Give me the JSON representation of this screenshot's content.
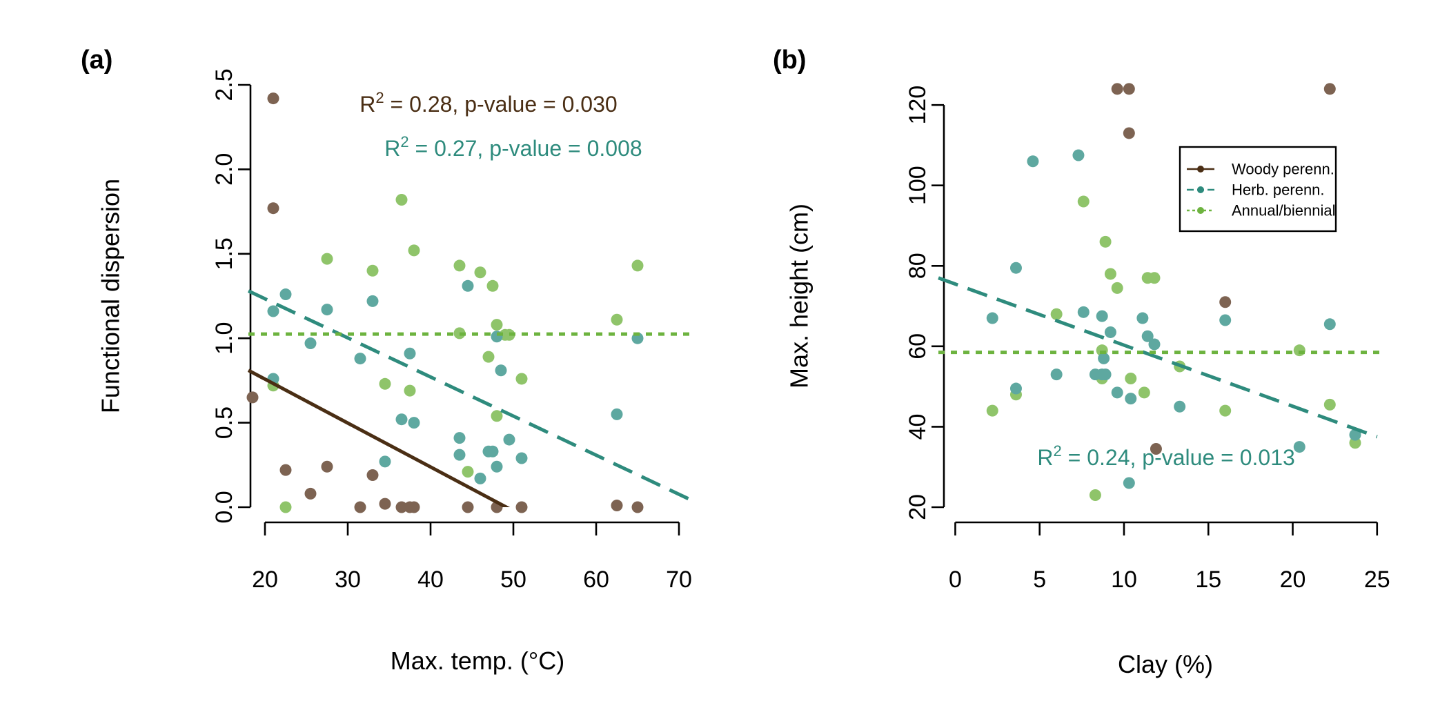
{
  "colors": {
    "woody": "#4a2e14",
    "woody_point": "#7d6352",
    "herb": "#2e8b7d",
    "herb_point": "#5ea8a0",
    "annual": "#6db33f",
    "annual_point": "#8fc46a",
    "axis": "#000000"
  },
  "chart_data": [
    {
      "type": "scatter",
      "panel_label": "(a)",
      "xlabel": "Max. temp. (°C)",
      "ylabel": "Functional dispersion",
      "xlim": [
        18,
        72
      ],
      "ylim": [
        0,
        2.5
      ],
      "x_ticks": [
        20,
        30,
        40,
        50,
        60,
        70
      ],
      "y_ticks": [
        0.0,
        0.5,
        1.0,
        1.5,
        2.0,
        2.5
      ],
      "x_tick_labels": [
        "20",
        "30",
        "40",
        "50",
        "60",
        "70"
      ],
      "y_tick_labels": [
        "0.0",
        "0.5",
        "1.0",
        "1.5",
        "2.0",
        "2.5"
      ],
      "annotations": [
        {
          "text": "R² = 0.28, p-value = 0.030",
          "series": "woody",
          "x": 47,
          "y": 2.34
        },
        {
          "text": "R² = 0.27, p-value = 0.008",
          "series": "herb",
          "x": 50,
          "y": 2.08
        }
      ],
      "series": [
        {
          "key": "woody",
          "points": [
            [
              18.5,
              0.65
            ],
            [
              21,
              2.42
            ],
            [
              21,
              1.77
            ],
            [
              22.5,
              0.22
            ],
            [
              25.5,
              0.08
            ],
            [
              27.5,
              0.24
            ],
            [
              31.5,
              0
            ],
            [
              33,
              0.19
            ],
            [
              34.5,
              0.02
            ],
            [
              36.5,
              0
            ],
            [
              37.5,
              0
            ],
            [
              38,
              0
            ],
            [
              44.5,
              0
            ],
            [
              48,
              0
            ],
            [
              51,
              0
            ],
            [
              62.5,
              0.01
            ],
            [
              65,
              0
            ]
          ],
          "line": {
            "x": [
              18,
              53
            ],
            "y": [
              0.81,
              -0.1
            ]
          }
        },
        {
          "key": "herb",
          "points": [
            [
              21,
              1.16
            ],
            [
              21,
              0.76
            ],
            [
              22.5,
              1.26
            ],
            [
              25.5,
              0.97
            ],
            [
              27.5,
              1.17
            ],
            [
              31.5,
              0.88
            ],
            [
              33,
              1.22
            ],
            [
              34.5,
              0.27
            ],
            [
              36.5,
              0.52
            ],
            [
              37.5,
              0.91
            ],
            [
              38,
              0.5
            ],
            [
              43.5,
              0.41
            ],
            [
              43.5,
              0.31
            ],
            [
              44.5,
              1.31
            ],
            [
              46,
              0.17
            ],
            [
              47,
              0.33
            ],
            [
              47.5,
              0.33
            ],
            [
              48,
              0.24
            ],
            [
              48,
              1.01
            ],
            [
              48.5,
              0.81
            ],
            [
              49.5,
              0.4
            ],
            [
              51,
              0.29
            ],
            [
              62.5,
              0.55
            ],
            [
              65,
              1.0
            ]
          ],
          "line": {
            "x": [
              18,
              72
            ],
            "y": [
              1.28,
              0.03
            ]
          }
        },
        {
          "key": "annual",
          "points": [
            [
              21,
              0.72
            ],
            [
              22.5,
              0
            ],
            [
              27.5,
              1.47
            ],
            [
              33,
              1.4
            ],
            [
              34.5,
              0.73
            ],
            [
              36.5,
              1.82
            ],
            [
              37.5,
              0.69
            ],
            [
              38,
              1.52
            ],
            [
              43.5,
              1.43
            ],
            [
              43.5,
              1.03
            ],
            [
              44.5,
              0.21
            ],
            [
              46,
              1.39
            ],
            [
              47,
              0.89
            ],
            [
              47.5,
              1.31
            ],
            [
              48,
              1.08
            ],
            [
              48,
              0.54
            ],
            [
              49,
              1.02
            ],
            [
              49.5,
              1.02
            ],
            [
              51,
              0.76
            ],
            [
              62.5,
              1.11
            ],
            [
              65,
              1.43
            ]
          ],
          "line": {
            "x": [
              18,
              72
            ],
            "y": [
              1.025,
              1.025
            ]
          }
        }
      ]
    },
    {
      "type": "scatter",
      "panel_label": "(b)",
      "xlabel": "Clay (%)",
      "ylabel": "Max. height (cm)",
      "xlim": [
        -1,
        25.5
      ],
      "ylim": [
        20,
        125
      ],
      "x_ticks": [
        0,
        5,
        10,
        15,
        20,
        25
      ],
      "y_ticks": [
        20,
        40,
        60,
        80,
        100,
        120
      ],
      "x_tick_labels": [
        "0",
        "5",
        "10",
        "15",
        "20",
        "25"
      ],
      "y_tick_labels": [
        "20",
        "40",
        "60",
        "80",
        "100",
        "120"
      ],
      "annotations": [
        {
          "text": "R² = 0.24, p-value = 0.013",
          "series": "herb",
          "x": 12.5,
          "y": 30.5
        }
      ],
      "legend": {
        "position": "top-right",
        "entries": [
          {
            "series": "woody",
            "label": "Woody perenn."
          },
          {
            "series": "herb",
            "label": "Herb. perenn."
          },
          {
            "series": "annual",
            "label": "Annual/biennial"
          }
        ]
      },
      "series": [
        {
          "key": "woody",
          "points": [
            [
              9.6,
              124
            ],
            [
              10.3,
              124
            ],
            [
              10.3,
              113
            ],
            [
              11.9,
              34.5
            ],
            [
              16,
              71
            ],
            [
              22.2,
              124
            ]
          ],
          "line": null
        },
        {
          "key": "herb",
          "points": [
            [
              2.2,
              67
            ],
            [
              3.6,
              79.5
            ],
            [
              3.6,
              49.5
            ],
            [
              4.6,
              106
            ],
            [
              6,
              53
            ],
            [
              7.3,
              107.5
            ],
            [
              7.6,
              68.5
            ],
            [
              8.3,
              53
            ],
            [
              8.7,
              53
            ],
            [
              8.7,
              67.5
            ],
            [
              8.9,
              53
            ],
            [
              8.8,
              57
            ],
            [
              9.2,
              63.5
            ],
            [
              9.6,
              48.5
            ],
            [
              10.4,
              47
            ],
            [
              11.1,
              67
            ],
            [
              11.4,
              62.5
            ],
            [
              11.8,
              60.5
            ],
            [
              13.3,
              45
            ],
            [
              16,
              66.5
            ],
            [
              20.4,
              35
            ],
            [
              22.2,
              65.5
            ],
            [
              23.7,
              38
            ],
            [
              10.3,
              26
            ]
          ],
          "line": {
            "x": [
              -1,
              25
            ],
            "y": [
              77,
              37.5
            ]
          }
        },
        {
          "key": "annual",
          "points": [
            [
              2.2,
              44
            ],
            [
              3.6,
              48
            ],
            [
              6,
              68
            ],
            [
              7.6,
              96
            ],
            [
              8.3,
              23
            ],
            [
              8.7,
              52
            ],
            [
              8.7,
              59
            ],
            [
              8.9,
              86
            ],
            [
              9.2,
              78
            ],
            [
              9.6,
              74.5
            ],
            [
              10.4,
              52
            ],
            [
              11.2,
              48.5
            ],
            [
              11.4,
              77
            ],
            [
              11.8,
              77
            ],
            [
              13.3,
              55
            ],
            [
              16,
              44
            ],
            [
              20.4,
              59
            ],
            [
              22.2,
              45.5
            ],
            [
              23.7,
              36
            ]
          ],
          "line": {
            "x": [
              -1,
              25.5
            ],
            "y": [
              58.5,
              58.5
            ]
          }
        }
      ]
    }
  ]
}
